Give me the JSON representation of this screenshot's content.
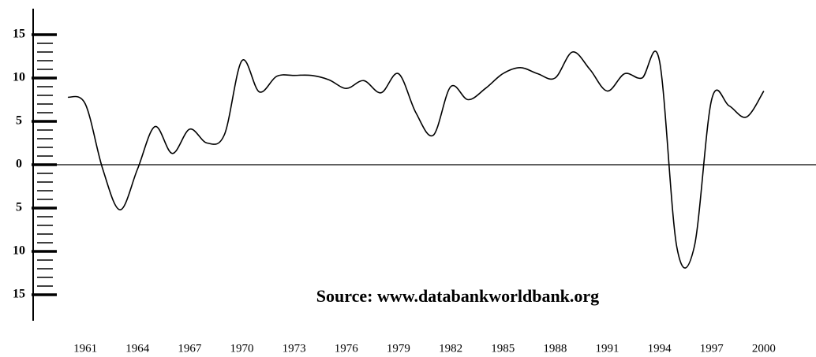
{
  "chart_data": {
    "type": "line",
    "source": "Source: www.databankworldbank.org",
    "x": [
      1960,
      1961,
      1962,
      1963,
      1964,
      1965,
      1966,
      1967,
      1968,
      1969,
      1970,
      1971,
      1972,
      1973,
      1974,
      1975,
      1976,
      1977,
      1978,
      1979,
      1980,
      1981,
      1982,
      1983,
      1984,
      1985,
      1986,
      1987,
      1988,
      1989,
      1990,
      1991,
      1992,
      1993,
      1994,
      1995,
      1996,
      1997,
      1998,
      1999,
      2000
    ],
    "values": [
      7.8,
      7.0,
      -0.5,
      -5.2,
      -0.5,
      4.4,
      1.3,
      4.1,
      2.5,
      3.5,
      12.0,
      8.4,
      10.2,
      10.3,
      10.3,
      9.8,
      8.8,
      9.7,
      8.3,
      10.5,
      6.0,
      3.4,
      9.0,
      7.5,
      8.8,
      10.5,
      11.2,
      10.5,
      10.0,
      13.0,
      11.0,
      8.5,
      10.5,
      10.0,
      12.0,
      -9.5,
      -9.5,
      7.5,
      6.8,
      5.5,
      8.5
    ],
    "color": "#000000",
    "xlim": [
      1958,
      2003
    ],
    "xticks": [
      1961,
      1964,
      1967,
      1970,
      1973,
      1976,
      1979,
      1982,
      1985,
      1988,
      1991,
      1994,
      1997,
      2000
    ],
    "ylim": [
      -18,
      18
    ],
    "yticks": [
      {
        "value": -15,
        "label": "15"
      },
      {
        "value": -10,
        "label": "10"
      },
      {
        "value": -5,
        "label": "5"
      },
      0,
      5,
      10,
      15
    ],
    "minor_yticks": [
      -14,
      -13,
      -12,
      -11,
      -9,
      -8,
      -7,
      -6,
      -4,
      -3,
      -2,
      -1,
      1,
      2,
      3,
      4,
      6,
      7,
      8,
      9,
      11,
      12,
      13,
      14
    ]
  }
}
